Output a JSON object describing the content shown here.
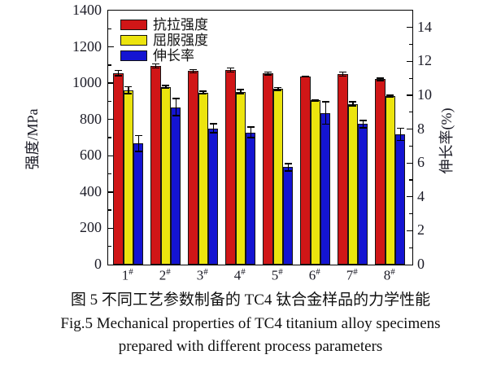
{
  "caption": {
    "line1_cn": "图 5  不同工艺参数制备的 TC4 钛合金样品的力学性能",
    "line2_en": "Fig.5  Mechanical properties of TC4 titanium alloy specimens",
    "line3_en": "prepared with different process parameters"
  },
  "chart_data": {
    "type": "bar",
    "title": "",
    "categories": [
      "1#",
      "2#",
      "3#",
      "4#",
      "5#",
      "6#",
      "7#",
      "8#"
    ],
    "category_suffix_superscript": "#",
    "ylabel_left": "强度/MPa",
    "ylabel_right": "伸长率(%)",
    "axes": {
      "left": {
        "min": 0,
        "max": 1400,
        "major": 200,
        "minor": 100,
        "ticks": [
          0,
          200,
          400,
          600,
          800,
          1000,
          1200,
          1400
        ]
      },
      "right": {
        "min": 0,
        "max": 15,
        "major": 2,
        "minor": 1,
        "ticks": [
          0,
          2,
          4,
          6,
          8,
          10,
          12,
          14
        ]
      }
    },
    "grid": false,
    "legend_position": "top-left-inside",
    "series": [
      {
        "name": "抗拉强度",
        "axis": "left",
        "unit": "MPa",
        "color": "#d01617",
        "values": [
          1055,
          1095,
          1066,
          1072,
          1053,
          1037,
          1050,
          1021
        ],
        "errors": [
          18,
          15,
          12,
          15,
          12,
          5,
          15,
          10
        ]
      },
      {
        "name": "屈服强度",
        "axis": "left",
        "unit": "MPa",
        "color": "#ece40e",
        "values": [
          962,
          980,
          948,
          953,
          968,
          905,
          886,
          928
        ],
        "errors": [
          22,
          10,
          12,
          15,
          12,
          8,
          15,
          10
        ]
      },
      {
        "name": "伸长率",
        "axis": "right",
        "unit": "%",
        "color": "#1414d2",
        "values": [
          7.15,
          9.3,
          8.05,
          7.8,
          5.75,
          8.95,
          8.3,
          7.7
        ],
        "errors": [
          0.5,
          0.55,
          0.3,
          0.35,
          0.25,
          0.7,
          0.25,
          0.4
        ]
      }
    ]
  }
}
